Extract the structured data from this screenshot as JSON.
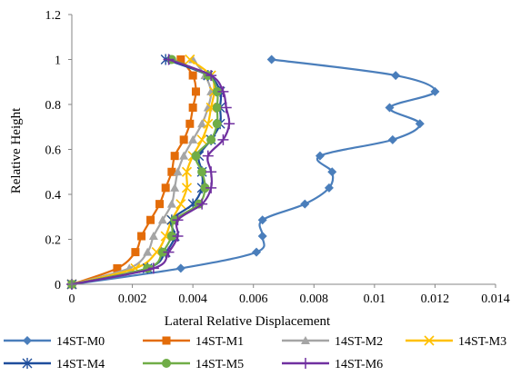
{
  "chart_data": {
    "type": "line",
    "title": "",
    "xlabel": "Lateral Relative Displacement",
    "ylabel": "Relative Height",
    "xlim": [
      0,
      0.014
    ],
    "ylim": [
      0,
      1.2
    ],
    "xticks": [
      0,
      0.002,
      0.004,
      0.006,
      0.008,
      0.01,
      0.012,
      0.014
    ],
    "yticks": [
      0,
      0.2,
      0.4,
      0.6,
      0.8,
      1,
      1.2
    ],
    "xtick_labels": [
      "0",
      "0.002",
      "0.004",
      "0.006",
      "0.008",
      "0.01",
      "0.012",
      "0.014"
    ],
    "ytick_labels": [
      "0",
      "0.2",
      "0.4",
      "0.6",
      "0.8",
      "1",
      "1.2"
    ],
    "grid": false,
    "legend_position": "bottom",
    "series": [
      {
        "name": "14ST-M0",
        "color": "#4a7ebb",
        "marker": "diamond",
        "x": [
          0,
          0.0036,
          0.0061,
          0.0063,
          0.0063,
          0.0077,
          0.0085,
          0.0086,
          0.0082,
          0.0106,
          0.0115,
          0.0105,
          0.012,
          0.0107,
          0.0066
        ],
        "y": [
          0,
          0.071,
          0.143,
          0.214,
          0.286,
          0.357,
          0.429,
          0.5,
          0.571,
          0.643,
          0.714,
          0.786,
          0.857,
          0.929,
          1
        ]
      },
      {
        "name": "14ST-M1",
        "color": "#e36c09",
        "marker": "square",
        "x": [
          0,
          0.0015,
          0.0021,
          0.0023,
          0.0026,
          0.0029,
          0.0031,
          0.0033,
          0.0034,
          0.0037,
          0.0039,
          0.004,
          0.0041,
          0.004,
          0.0036
        ],
        "y": [
          0,
          0.071,
          0.143,
          0.214,
          0.286,
          0.357,
          0.429,
          0.5,
          0.571,
          0.643,
          0.714,
          0.786,
          0.857,
          0.929,
          1
        ]
      },
      {
        "name": "14ST-M2",
        "color": "#a5a5a5",
        "marker": "triangle",
        "x": [
          0,
          0.0019,
          0.0025,
          0.0027,
          0.003,
          0.0033,
          0.0034,
          0.0035,
          0.0037,
          0.004,
          0.0043,
          0.0045,
          0.0046,
          0.0044,
          0.004
        ],
        "y": [
          0,
          0.071,
          0.143,
          0.214,
          0.286,
          0.357,
          0.429,
          0.5,
          0.571,
          0.643,
          0.714,
          0.786,
          0.857,
          0.929,
          1
        ]
      },
      {
        "name": "14ST-M3",
        "color": "#ffc000",
        "marker": "x",
        "x": [
          0,
          0.0021,
          0.0028,
          0.0031,
          0.0033,
          0.0036,
          0.0038,
          0.0038,
          0.004,
          0.0043,
          0.0045,
          0.0046,
          0.0047,
          0.0046,
          0.0039
        ],
        "y": [
          0,
          0.071,
          0.143,
          0.214,
          0.286,
          0.357,
          0.429,
          0.5,
          0.571,
          0.643,
          0.714,
          0.786,
          0.857,
          0.929,
          1
        ]
      },
      {
        "name": "14ST-M4",
        "color": "#1f4e9c",
        "marker": "asterisk",
        "x": [
          0,
          0.0025,
          0.0031,
          0.0034,
          0.0033,
          0.004,
          0.0043,
          0.0043,
          0.0042,
          0.0046,
          0.0049,
          0.0049,
          0.0049,
          0.0045,
          0.0031
        ],
        "y": [
          0,
          0.071,
          0.143,
          0.214,
          0.286,
          0.357,
          0.429,
          0.5,
          0.571,
          0.643,
          0.714,
          0.786,
          0.857,
          0.929,
          1
        ]
      },
      {
        "name": "14ST-M5",
        "color": "#70ad47",
        "marker": "circle",
        "x": [
          0,
          0.0025,
          0.003,
          0.0033,
          0.0034,
          0.0042,
          0.0044,
          0.0043,
          0.0041,
          0.0046,
          0.0048,
          0.0048,
          0.0048,
          0.0045,
          0.0033
        ],
        "y": [
          0,
          0.071,
          0.143,
          0.214,
          0.286,
          0.357,
          0.429,
          0.5,
          0.571,
          0.643,
          0.714,
          0.786,
          0.857,
          0.929,
          1
        ]
      },
      {
        "name": "14ST-M6",
        "color": "#7030a0",
        "marker": "plus",
        "x": [
          0,
          0.0027,
          0.0032,
          0.0035,
          0.0035,
          0.0043,
          0.0046,
          0.0046,
          0.0045,
          0.005,
          0.0052,
          0.0051,
          0.005,
          0.0046,
          0.0032
        ],
        "y": [
          0,
          0.071,
          0.143,
          0.214,
          0.286,
          0.357,
          0.429,
          0.5,
          0.571,
          0.643,
          0.714,
          0.786,
          0.857,
          0.929,
          1
        ]
      }
    ]
  }
}
